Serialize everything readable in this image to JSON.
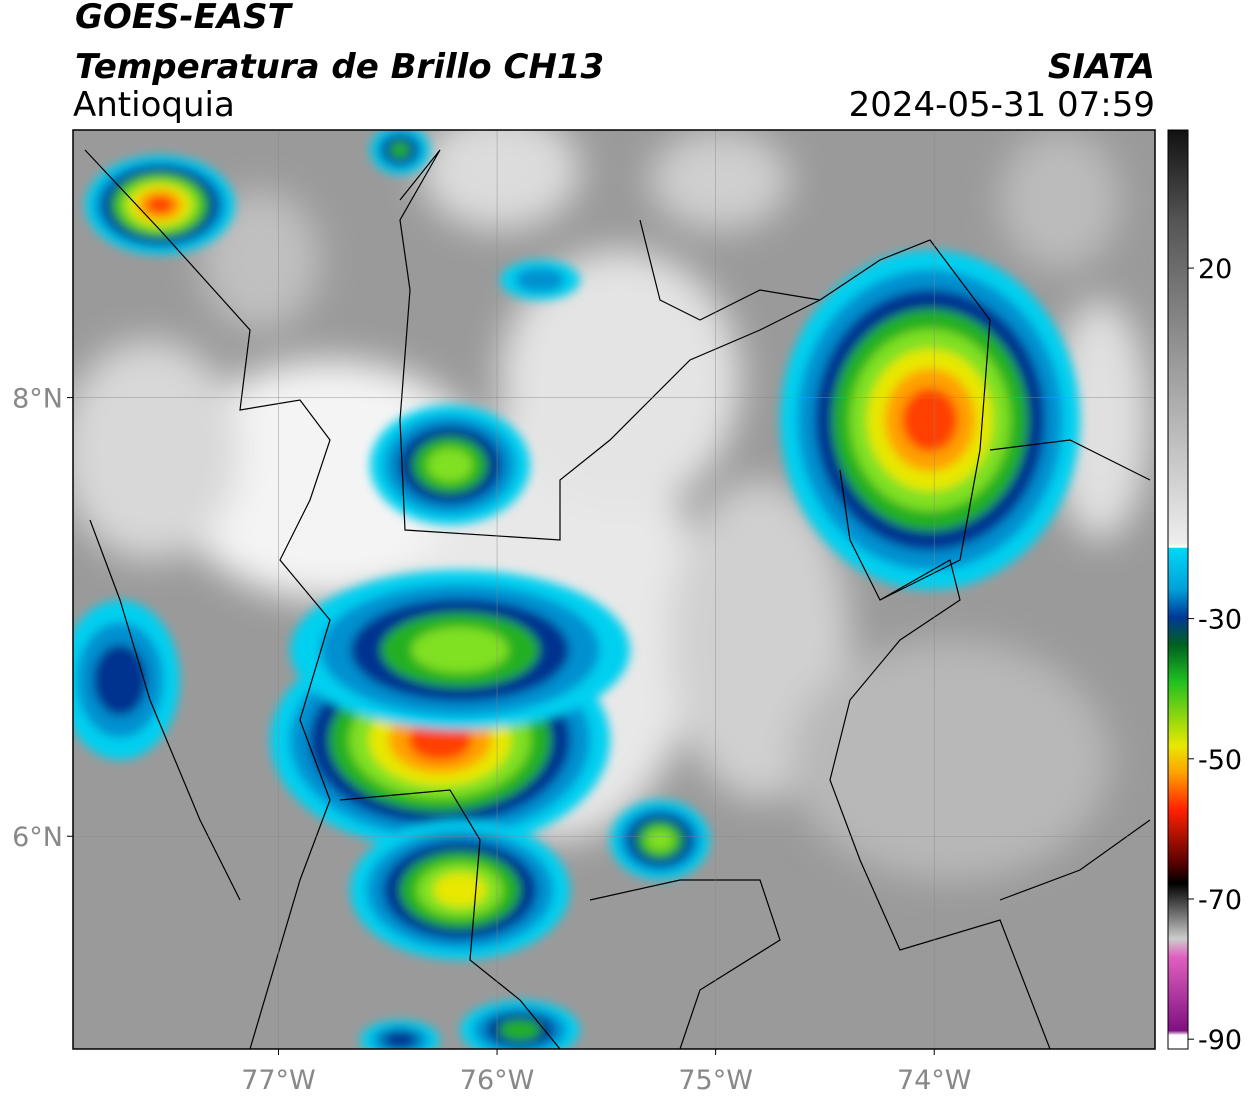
{
  "header": {
    "title": "GOES-EAST",
    "subtitle": "Temperatura de Brillo CH13",
    "region": "Antioquia",
    "source": "SIATA",
    "datetime": "2024-05-31 07:59"
  },
  "map": {
    "xlim": [
      -77.94,
      -72.99
    ],
    "ylim": [
      5.03,
      9.22
    ],
    "xticks": [
      {
        "value": -77,
        "label": "77°W"
      },
      {
        "value": -76,
        "label": "76°W"
      },
      {
        "value": -75,
        "label": "75°W"
      },
      {
        "value": -74,
        "label": "74°W"
      }
    ],
    "yticks": [
      {
        "value": 8,
        "label": "8°N"
      },
      {
        "value": 6,
        "label": "6°N"
      }
    ],
    "grid": true
  },
  "colorbar": {
    "lim": [
      -91.4,
      39.7
    ],
    "ticks": [
      20,
      -30,
      -50,
      -70,
      -90
    ]
  }
}
